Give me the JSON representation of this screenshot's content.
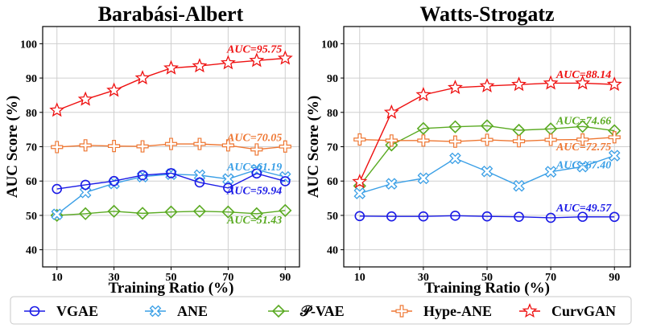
{
  "chart_data": [
    {
      "type": "line",
      "title": "Barabási-Albert",
      "xlabel": "Training Ratio (%)",
      "ylabel": "AUC Score (%)",
      "x": [
        10,
        20,
        30,
        40,
        50,
        60,
        70,
        80,
        90
      ],
      "xticks": [
        10,
        30,
        50,
        70,
        90
      ],
      "yticks": [
        40,
        50,
        60,
        70,
        80,
        90,
        100
      ],
      "xlim": [
        5,
        95
      ],
      "ylim": [
        35,
        105
      ],
      "grid": true,
      "series": [
        {
          "name": "VGAE",
          "values": [
            57.7,
            58.9,
            60.0,
            61.7,
            62.3,
            59.6,
            58.0,
            62.2,
            59.94
          ]
        },
        {
          "name": "ANE",
          "values": [
            50.3,
            56.7,
            59.3,
            61.3,
            62.0,
            61.7,
            60.6,
            63.3,
            61.19
          ]
        },
        {
          "name": "P-VAE",
          "values": [
            50.0,
            50.5,
            51.2,
            50.6,
            51.0,
            51.2,
            51.0,
            50.5,
            51.43
          ]
        },
        {
          "name": "Hype-ANE",
          "values": [
            69.9,
            70.4,
            70.2,
            70.1,
            70.8,
            70.8,
            70.4,
            69.2,
            70.05
          ]
        },
        {
          "name": "CurvGAN",
          "values": [
            80.6,
            83.8,
            86.4,
            90.0,
            92.9,
            93.5,
            94.4,
            95.1,
            95.75
          ]
        }
      ],
      "annotations": [
        {
          "text": "AUC=95.75",
          "series": "CurvGAN",
          "x": 90,
          "y": 95.75
        },
        {
          "text": "AUC=70.05",
          "series": "Hype-ANE",
          "x": 90,
          "y": 70.05
        },
        {
          "text": "AUC=61.19",
          "series": "ANE",
          "x": 90,
          "y": 61.19
        },
        {
          "text": "AUC=59.94",
          "series": "VGAE",
          "x": 90,
          "y": 59.94
        },
        {
          "text": "AUC=51.43",
          "series": "P-VAE",
          "x": 90,
          "y": 51.43
        }
      ]
    },
    {
      "type": "line",
      "title": "Watts-Strogatz",
      "xlabel": "Training Ratio (%)",
      "ylabel": "AUC Score (%)",
      "x": [
        10,
        20,
        30,
        40,
        50,
        60,
        70,
        80,
        90
      ],
      "xticks": [
        10,
        30,
        50,
        70,
        90
      ],
      "yticks": [
        40,
        50,
        60,
        70,
        80,
        90,
        100
      ],
      "xlim": [
        5,
        95
      ],
      "ylim": [
        35,
        105
      ],
      "grid": true,
      "series": [
        {
          "name": "VGAE",
          "values": [
            49.8,
            49.7,
            49.7,
            49.9,
            49.7,
            49.6,
            49.3,
            49.6,
            49.57
          ]
        },
        {
          "name": "ANE",
          "values": [
            56.4,
            59.2,
            60.8,
            66.6,
            62.8,
            58.6,
            62.7,
            64.2,
            67.4
          ]
        },
        {
          "name": "P-VAE",
          "values": [
            58.6,
            70.5,
            75.3,
            75.8,
            76.1,
            74.8,
            75.2,
            75.9,
            74.66
          ]
        },
        {
          "name": "Hype-ANE",
          "values": [
            72.1,
            71.8,
            71.8,
            71.5,
            72.0,
            71.6,
            72.0,
            72.1,
            72.75
          ]
        },
        {
          "name": "CurvGAN",
          "values": [
            59.8,
            80.0,
            85.1,
            87.2,
            87.7,
            88.1,
            88.5,
            88.5,
            88.14
          ]
        }
      ],
      "annotations": [
        {
          "text": "AUC=88.14",
          "series": "CurvGAN",
          "x": 90,
          "y": 88.14
        },
        {
          "text": "AUC=74.66",
          "series": "P-VAE",
          "x": 90,
          "y": 74.66
        },
        {
          "text": "AUC=72.75",
          "series": "Hype-ANE",
          "x": 90,
          "y": 72.75
        },
        {
          "text": "AUC=67.40",
          "series": "ANE",
          "x": 90,
          "y": 67.4
        },
        {
          "text": "AUC=49.57",
          "series": "VGAE",
          "x": 90,
          "y": 49.57
        }
      ]
    }
  ],
  "legend": {
    "position": "bottom",
    "items": [
      {
        "label": "VGAE",
        "marker": "circle",
        "color": "#1a1ae6"
      },
      {
        "label": "ANE",
        "marker": "x",
        "color": "#3a9fe6"
      },
      {
        "label": "𝒫-VAE",
        "marker": "diamond",
        "color": "#5aaa22"
      },
      {
        "label": "Hype-ANE",
        "marker": "plus",
        "color": "#ee7733"
      },
      {
        "label": "CurvGAN",
        "marker": "star",
        "color": "#ee1111"
      }
    ]
  }
}
